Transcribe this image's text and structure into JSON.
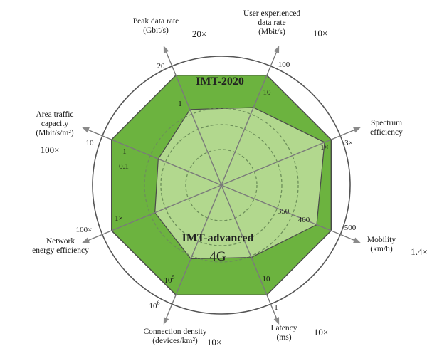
{
  "chart_data": {
    "type": "radar",
    "title": "",
    "series": [
      {
        "name": "IMT-2020",
        "label": "IMT-2020",
        "color": "#6cb33f",
        "values": [
          20,
          100,
          3,
          500,
          1,
          1000000,
          100,
          10
        ],
        "value_labels": [
          "20",
          "100",
          "3×",
          "500",
          "1",
          "10^6",
          "100×",
          "10"
        ]
      },
      {
        "name": "IMT-advanced",
        "label": "IMT-advanced",
        "sublabel": "4G",
        "color": "#b2d88e",
        "values": [
          1,
          10,
          1,
          350,
          10,
          100000,
          1,
          0.1
        ],
        "value_labels": [
          "1",
          "10",
          "1×",
          "350",
          "10",
          "10^5",
          "1×",
          "0.1"
        ]
      }
    ],
    "axes": [
      {
        "key": "peak",
        "label": [
          "Peak data rate",
          "(Gbit/s)"
        ],
        "improvement": "20×"
      },
      {
        "key": "user",
        "label": [
          "User experienced",
          "data rate",
          "(Mbit/s)"
        ],
        "improvement": "10×"
      },
      {
        "key": "spectrum",
        "label": [
          "Spectrum",
          "efficiency"
        ],
        "improvement": ""
      },
      {
        "key": "mobility",
        "label": [
          "Mobility",
          "(km/h)"
        ],
        "improvement": "1.4×"
      },
      {
        "key": "latency",
        "label": [
          "Latency",
          "(ms)"
        ],
        "improvement": "10×"
      },
      {
        "key": "connection",
        "label": [
          "Connection density",
          "(devices/km²)"
        ],
        "improvement": "10×"
      },
      {
        "key": "energy",
        "label": [
          "Network",
          "energy efficiency"
        ],
        "improvement": ""
      },
      {
        "key": "area",
        "label": [
          "Area traffic",
          "capacity",
          "(Mbit/s/m²)"
        ],
        "improvement": "100×"
      }
    ],
    "extra_ticks": [
      {
        "axis": "mobility",
        "label": "400"
      },
      {
        "axis": "area",
        "label": "1"
      }
    ],
    "colors": {
      "imt2020_fill": "#6cb33f",
      "imt_advanced_fill": "#b2d88e",
      "outline": "#4a4a4a",
      "axis": "#7a7a7a",
      "grid_dash": "#6d8f5a"
    }
  }
}
